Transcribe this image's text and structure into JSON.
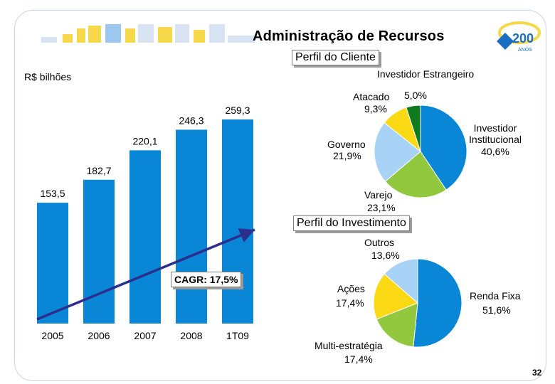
{
  "slide": {
    "title": "Administração de Recursos",
    "page_number": "32",
    "accent_color": "#1a6fc2",
    "logo_text": "200",
    "logo_subtext": "ANOS"
  },
  "chart_data": [
    {
      "type": "bar",
      "ylabel": "R$ bilhões",
      "categories": [
        "2005",
        "2006",
        "2007",
        "2008",
        "1T09"
      ],
      "values": [
        153.5,
        182.7,
        220.1,
        246.3,
        259.3
      ],
      "value_labels": [
        "153,5",
        "182,7",
        "220,1",
        "246,3",
        "259,3"
      ],
      "bar_color": "#0a86d6",
      "ylim": [
        0,
        270
      ],
      "grid": false,
      "annotation": "CAGR: 17,5%",
      "trend_color": "#2b2e8c"
    },
    {
      "type": "pie",
      "title": "Perfil do Cliente",
      "slices": [
        {
          "label": "Investidor Institucional",
          "value": 40.6,
          "value_label": "40,6%",
          "color": "#0a86d6"
        },
        {
          "label": "Varejo",
          "value": 23.1,
          "value_label": "23,1%",
          "color": "#92c83e"
        },
        {
          "label": "Governo",
          "value": 21.9,
          "value_label": "21,9%",
          "color": "#a8d2f6"
        },
        {
          "label": "Atacado",
          "value": 9.3,
          "value_label": "9,3%",
          "color": "#fcd915"
        },
        {
          "label": "Investidor Estrangeiro",
          "value": 5.0,
          "value_label": "5,0%",
          "color": "#0f7a1f"
        }
      ]
    },
    {
      "type": "pie",
      "title": "Perfil do Investimento",
      "slices": [
        {
          "label": "Renda Fixa",
          "value": 51.6,
          "value_label": "51,6%",
          "color": "#0a86d6"
        },
        {
          "label": "Multi-estratégia",
          "value": 17.4,
          "value_label": "17,4%",
          "color": "#92c83e"
        },
        {
          "label": "Ações",
          "value": 17.4,
          "value_label": "17,4%",
          "color": "#fcd915"
        },
        {
          "label": "Outros",
          "value": 13.6,
          "value_label": "13,6%",
          "color": "#a8d2f6"
        }
      ]
    }
  ]
}
